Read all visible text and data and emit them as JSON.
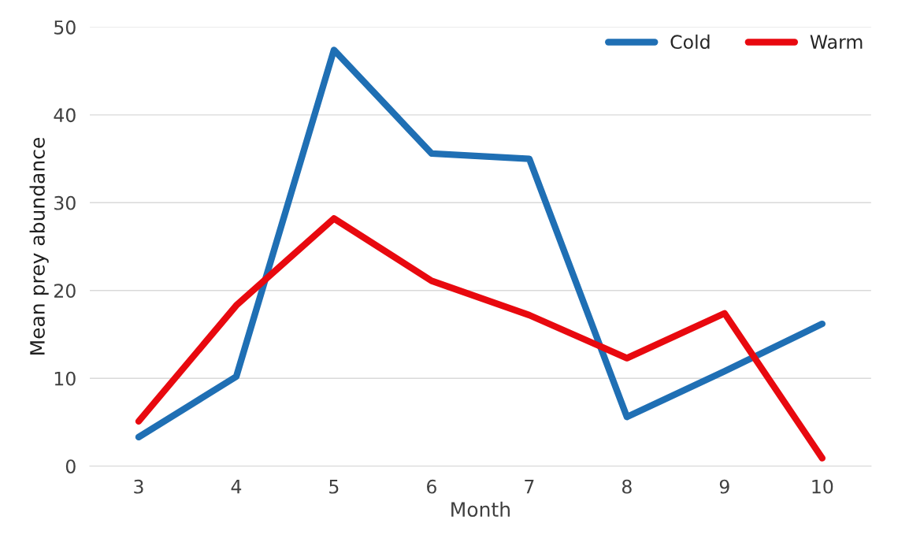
{
  "chart_data": {
    "type": "line",
    "xlabel": "Month",
    "ylabel": "Mean prey abundance",
    "categories": [
      "3",
      "4",
      "5",
      "6",
      "7",
      "8",
      "9",
      "10"
    ],
    "series": [
      {
        "name": "Cold",
        "color": "#1f6fb4",
        "values": [
          3.3,
          10.2,
          47.4,
          35.6,
          35.0,
          5.6,
          10.8,
          16.2
        ]
      },
      {
        "name": "Warm",
        "color": "#e8090f",
        "values": [
          5.1,
          18.3,
          28.2,
          21.1,
          17.2,
          12.3,
          17.4,
          0.9
        ]
      }
    ],
    "ylim": [
      0,
      50
    ],
    "yticks": [
      0,
      10,
      20,
      30,
      40,
      50
    ],
    "grid": "y",
    "legend": "top right",
    "marker": "none",
    "line_style": "solid"
  }
}
